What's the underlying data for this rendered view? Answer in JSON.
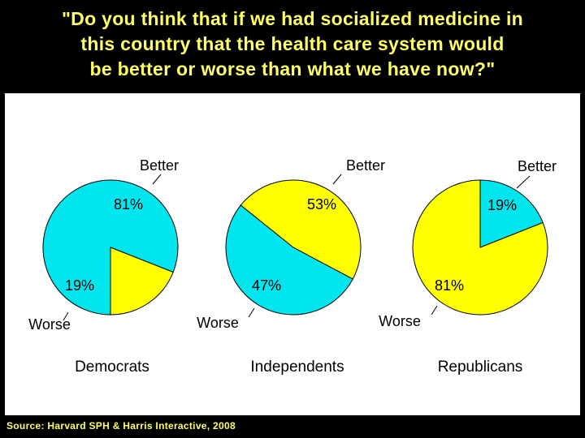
{
  "title": {
    "line1": "\"Do you think that if we had socialized medicine in",
    "line2": "this country that the health care system would",
    "line3": "be better or worse than what we have now?\""
  },
  "source": "Source: Harvard SPH & Harris Interactive, 2008",
  "colors": {
    "background": "#000000",
    "panel": "#ffffff",
    "title": "#ffff66",
    "better": "#00e5ee",
    "worse": "#ffff00"
  },
  "chart_data": [
    {
      "type": "pie",
      "group": "Democrats",
      "slices": [
        {
          "label": "Better",
          "value": 81,
          "value_label": "81%"
        },
        {
          "label": "Worse",
          "value": 19,
          "value_label": "19%"
        }
      ]
    },
    {
      "type": "pie",
      "group": "Independents",
      "slices": [
        {
          "label": "Better",
          "value": 53,
          "value_label": "53%"
        },
        {
          "label": "Worse",
          "value": 47,
          "value_label": "47%"
        }
      ]
    },
    {
      "type": "pie",
      "group": "Republicans",
      "slices": [
        {
          "label": "Better",
          "value": 19,
          "value_label": "19%"
        },
        {
          "label": "Worse",
          "value": 81,
          "value_label": "81%"
        }
      ]
    }
  ]
}
